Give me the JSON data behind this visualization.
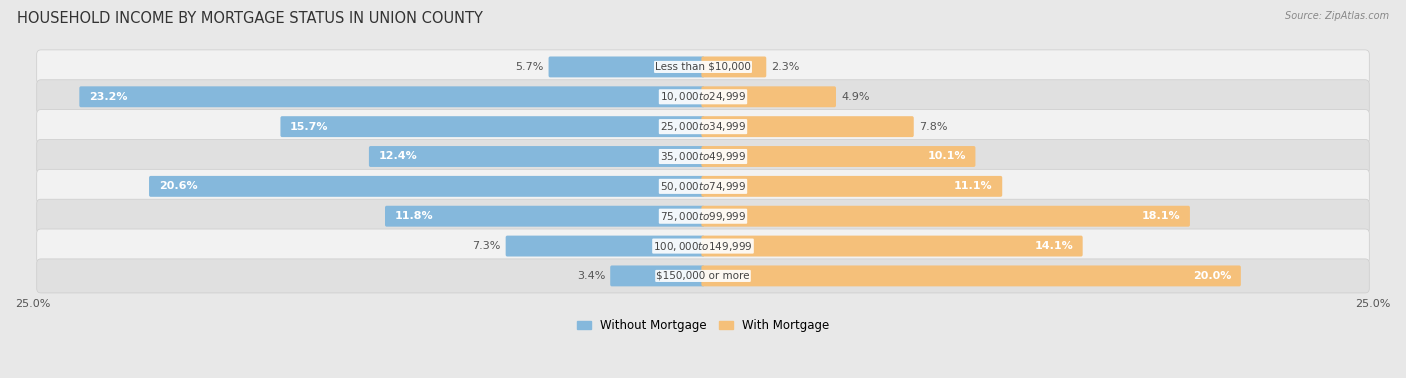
{
  "title": "HOUSEHOLD INCOME BY MORTGAGE STATUS IN UNION COUNTY",
  "source": "Source: ZipAtlas.com",
  "categories": [
    "Less than $10,000",
    "$10,000 to $24,999",
    "$25,000 to $34,999",
    "$35,000 to $49,999",
    "$50,000 to $74,999",
    "$75,000 to $99,999",
    "$100,000 to $149,999",
    "$150,000 or more"
  ],
  "without_mortgage": [
    5.7,
    23.2,
    15.7,
    12.4,
    20.6,
    11.8,
    7.3,
    3.4
  ],
  "with_mortgage": [
    2.3,
    4.9,
    7.8,
    10.1,
    11.1,
    18.1,
    14.1,
    20.0
  ],
  "without_mortgage_color": "#85b8dc",
  "with_mortgage_color": "#f5c07a",
  "background_color": "#e8e8e8",
  "row_bg_light": "#f2f2f2",
  "row_bg_dark": "#e0e0e0",
  "xlim": 25.0,
  "bar_height": 0.58,
  "title_fontsize": 10.5,
  "label_fontsize": 8,
  "category_fontsize": 7.5,
  "legend_fontsize": 8.5,
  "axis_label_fontsize": 8
}
